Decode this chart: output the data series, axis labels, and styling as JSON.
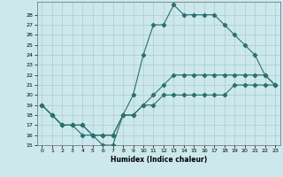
{
  "xlabel": "Humidex (Indice chaleur)",
  "bg_color": "#cce8ec",
  "grid_color": "#aacccc",
  "line_color": "#2a7070",
  "ylim": [
    15,
    29
  ],
  "xlim": [
    -0.5,
    23.5
  ],
  "yticks": [
    15,
    16,
    17,
    18,
    19,
    20,
    21,
    22,
    23,
    24,
    25,
    26,
    27,
    28
  ],
  "xticks": [
    0,
    1,
    2,
    3,
    4,
    5,
    6,
    7,
    8,
    9,
    10,
    11,
    12,
    13,
    14,
    15,
    16,
    17,
    18,
    19,
    20,
    21,
    22,
    23
  ],
  "line1_x": [
    0,
    1,
    2,
    3,
    4,
    5,
    6,
    7,
    8,
    9,
    10,
    11,
    12,
    13,
    14,
    15,
    16,
    17,
    18,
    19,
    20,
    21,
    22,
    23
  ],
  "line1_y": [
    19,
    18,
    17,
    17,
    17,
    16,
    15,
    15,
    18,
    20,
    24,
    27,
    27,
    29,
    28,
    28,
    28,
    28,
    27,
    26,
    25,
    24,
    22,
    21
  ],
  "line2_x": [
    0,
    1,
    2,
    3,
    4,
    5,
    6,
    7,
    8,
    9,
    10,
    11,
    12,
    13,
    14,
    15,
    16,
    17,
    18,
    19,
    20,
    21,
    22,
    23
  ],
  "line2_y": [
    19,
    18,
    17,
    17,
    16,
    16,
    16,
    16,
    18,
    18,
    19,
    20,
    21,
    22,
    22,
    22,
    22,
    22,
    22,
    22,
    22,
    22,
    22,
    21
  ],
  "line3_x": [
    0,
    1,
    2,
    3,
    4,
    5,
    6,
    7,
    8,
    9,
    10,
    11,
    12,
    13,
    14,
    15,
    16,
    17,
    18,
    19,
    20,
    21,
    22,
    23
  ],
  "line3_y": [
    19,
    18,
    17,
    17,
    17,
    16,
    16,
    16,
    18,
    18,
    19,
    19,
    20,
    20,
    20,
    20,
    20,
    20,
    20,
    21,
    21,
    21,
    21,
    21
  ]
}
